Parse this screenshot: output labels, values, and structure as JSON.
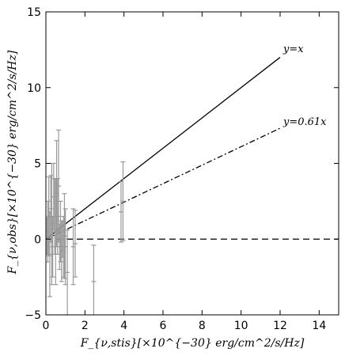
{
  "chart_data": {
    "type": "scatter",
    "title": "",
    "xlabel": "F_{ν,stis}[×10^{−30} erg/cm^2/s/Hz]",
    "ylabel": "F_{ν,obs}[×10^{−30} erg/cm^2/s/Hz]",
    "xlim": [
      0,
      15
    ],
    "ylim": [
      -5,
      15
    ],
    "xticks": [
      "0",
      "2",
      "4",
      "6",
      "8",
      "10",
      "12",
      "14"
    ],
    "yticks": [
      "−5",
      "0",
      "5",
      "10",
      "15"
    ],
    "grid": false,
    "legend": "none",
    "colors": {
      "points": "#999999",
      "lines": "#000000"
    },
    "lines": [
      {
        "label": "y=x",
        "slope": 1.0,
        "x_range": [
          0,
          12
        ],
        "style": "solid"
      },
      {
        "label": "y=0.61x",
        "slope": 0.61,
        "x_range": [
          0,
          12
        ],
        "style": "dashdot"
      },
      {
        "label": "",
        "slope": 0.0,
        "x_range": [
          0,
          15
        ],
        "style": "dashed"
      }
    ],
    "points": [
      {
        "x": 0.05,
        "y": 0.2,
        "err": 1.2
      },
      {
        "x": 0.1,
        "y": 0.5,
        "err": 2.0
      },
      {
        "x": 0.15,
        "y": 1.5,
        "err": 2.6
      },
      {
        "x": 0.2,
        "y": -1.0,
        "err": 2.8
      },
      {
        "x": 0.25,
        "y": 2.0,
        "err": 2.2
      },
      {
        "x": 0.3,
        "y": 1.0,
        "err": 4.0
      },
      {
        "x": 0.35,
        "y": -0.5,
        "err": 2.0
      },
      {
        "x": 0.4,
        "y": 2.8,
        "err": 2.2
      },
      {
        "x": 0.45,
        "y": 1.5,
        "err": 2.5
      },
      {
        "x": 0.5,
        "y": 0.5,
        "err": 3.5
      },
      {
        "x": 0.55,
        "y": 3.0,
        "err": 3.5
      },
      {
        "x": 0.6,
        "y": 1.5,
        "err": 2.5
      },
      {
        "x": 0.65,
        "y": 3.5,
        "err": 3.7
      },
      {
        "x": 0.7,
        "y": -0.5,
        "err": 1.5
      },
      {
        "x": 0.75,
        "y": 0.5,
        "err": 2.0
      },
      {
        "x": 0.8,
        "y": -0.8,
        "err": 2.0
      },
      {
        "x": 0.85,
        "y": 0.0,
        "err": 1.2
      },
      {
        "x": 0.9,
        "y": -0.5,
        "err": 2.0
      },
      {
        "x": 0.95,
        "y": 0.2,
        "err": 2.8
      },
      {
        "x": 1.0,
        "y": -0.5,
        "err": 2.5
      },
      {
        "x": 1.1,
        "y": -2.2,
        "err": 2.8
      },
      {
        "x": 1.4,
        "y": -0.5,
        "err": 2.5
      },
      {
        "x": 1.5,
        "y": -0.3,
        "err": 2.2
      },
      {
        "x": 2.45,
        "y": -2.8,
        "err": 2.4
      },
      {
        "x": 3.85,
        "y": 1.8,
        "err": 2.0
      },
      {
        "x": 3.95,
        "y": 2.5,
        "err": 2.6
      }
    ]
  }
}
